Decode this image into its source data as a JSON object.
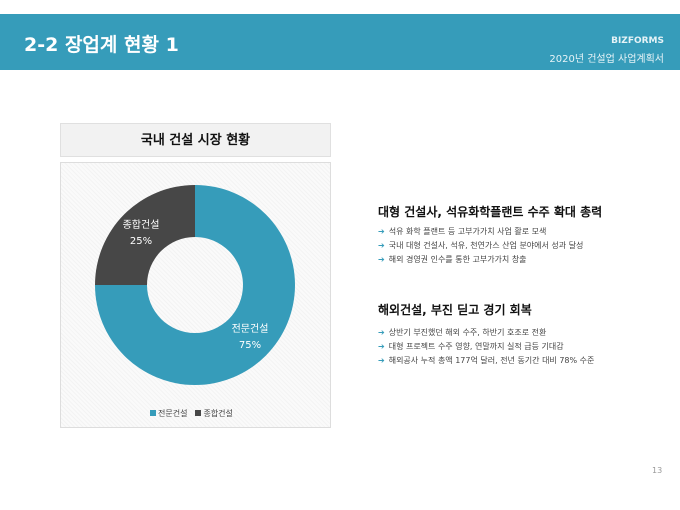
{
  "header": {
    "title": "2-2 장업계 현황 1",
    "brand": "BIZFORMS",
    "subtitle": "2020년 건설업 사업계획서"
  },
  "chart_data": {
    "type": "pie",
    "variant": "donut",
    "title": "국내 건설 시장 현황",
    "categories": [
      "전문건설",
      "종합건설"
    ],
    "values": [
      75,
      25
    ],
    "data_labels": [
      "75%",
      "25%"
    ],
    "colors": [
      "#369cba",
      "#474747"
    ],
    "legend": "bottom"
  },
  "sections": [
    {
      "heading": "대형 건설사, 석유화학플랜트 수주 확대 총력",
      "bullets": [
        "석유 화학 플랜트 등 고부가가치 사업 활로 모색",
        "국내 대형 건설사, 석유, 천연가스 산업 분야에서 성과 달성",
        "해외 경영권 인수를 통한 고부가가치 창출"
      ]
    },
    {
      "heading": "해외건설, 부진 딛고 경기 회복",
      "bullets": [
        "상반기 부진했던 해외 수주, 하반기 호조로 전환",
        "대형 프로젝트 수주 영향, 연말까지 실적 급등 기대감",
        "해외공사 누적 총액 177억 달러, 전년 동기간 대비 78% 수준"
      ]
    }
  ],
  "page_number": "13"
}
